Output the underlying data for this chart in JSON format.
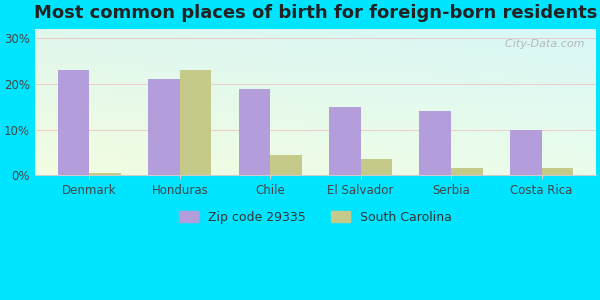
{
  "title": "Most common places of birth for foreign-born residents",
  "categories": [
    "Denmark",
    "Honduras",
    "Chile",
    "El Salvador",
    "Serbia",
    "Costa Rica"
  ],
  "zip_values": [
    23,
    21,
    19,
    15,
    14,
    10
  ],
  "sc_values": [
    0.5,
    23,
    4.5,
    3.5,
    1.5,
    1.5
  ],
  "zip_color": "#b39ddb",
  "sc_color": "#c5c98a",
  "background_outer": "#00e5ff",
  "ylim": [
    0,
    32
  ],
  "yticks": [
    0,
    10,
    20,
    30
  ],
  "ytick_labels": [
    "0%",
    "10%",
    "20%",
    "30%"
  ],
  "legend_zip": "Zip code 29335",
  "legend_sc": "South Carolina",
  "bar_width": 0.35,
  "title_fontsize": 13,
  "label_fontsize": 8.5,
  "legend_fontsize": 9,
  "watermark": "  City-Data.com"
}
